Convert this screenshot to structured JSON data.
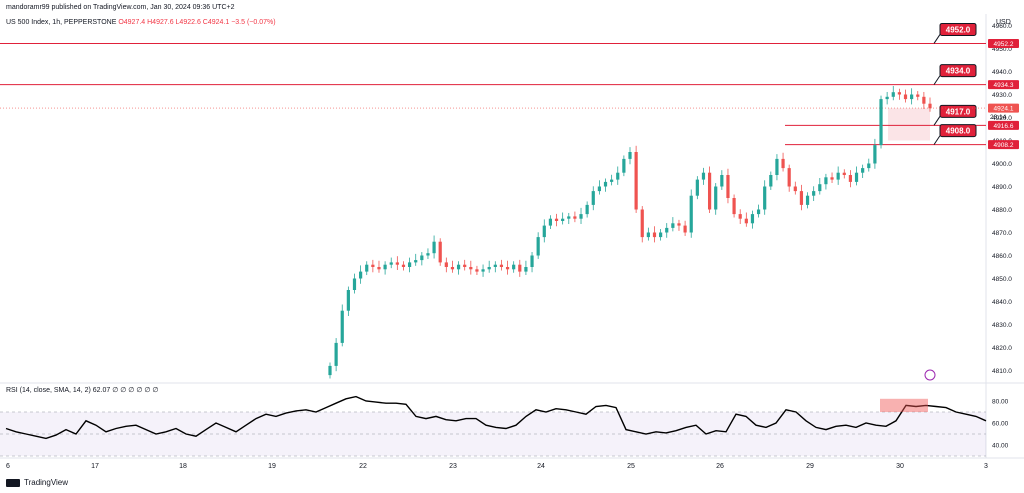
{
  "header": {
    "published": "mandoramr99 published on TradingView.com, Jan 30, 2024 09:36 UTC+2"
  },
  "symbol": {
    "name": "US 500 Index, 1h, PEPPERSTONE",
    "ohlc": "O4927.4  H4927.6  L4922.6  C4924.1  −3.5 (−0.07%)"
  },
  "currency": "USD",
  "rsi_title": "RSI (14, close, SMA, 14, 2)  62.07  ∅ ∅ ∅ ∅ ∅ ∅",
  "footer": {
    "brand": "TradingView"
  },
  "colors": {
    "up": "#26a69a",
    "down": "#ef5350",
    "level": "#e0213a",
    "rsi_line": "#000000",
    "rsi_band": "#7e57c2"
  },
  "chart_data": [
    {
      "type": "candlestick",
      "ylim": [
        4805,
        4965
      ],
      "y_ticks": [
        4810,
        4820,
        4830,
        4840,
        4850,
        4860,
        4870,
        4880,
        4890,
        4900,
        4910,
        4920,
        4930,
        4940,
        4950,
        4960
      ],
      "x_ticks": [
        "6",
        "17",
        "18",
        "19",
        "22",
        "23",
        "24",
        "25",
        "26",
        "29",
        "30",
        "3"
      ],
      "closes": [
        4812,
        4822,
        4836,
        4845,
        4850,
        4853,
        4856,
        4855,
        4854,
        4856,
        4857,
        4856,
        4855,
        4857,
        4858,
        4860,
        4861,
        4866,
        4857,
        4855,
        4854,
        4856,
        4855,
        4854,
        4853,
        4854,
        4855,
        4856,
        4855,
        4854,
        4856,
        4853,
        4855,
        4860,
        4868,
        4873,
        4876,
        4875,
        4876,
        4877,
        4876,
        4878,
        4882,
        4888,
        4890,
        4892,
        4893,
        4896,
        4902,
        4905,
        4880,
        4868,
        4870,
        4868,
        4870,
        4872,
        4874,
        4873,
        4870,
        4886,
        4893,
        4896,
        4880,
        4890,
        4895,
        4885,
        4878,
        4876,
        4874,
        4878,
        4880,
        4890,
        4895,
        4902,
        4898,
        4890,
        4888,
        4882,
        4886,
        4888,
        4891,
        4894,
        4893,
        4896,
        4895,
        4892,
        4896,
        4898,
        4900,
        4908,
        4928,
        4929,
        4931,
        4930,
        4928,
        4930,
        4929,
        4926,
        4924
      ],
      "horizontal_levels": [
        {
          "label": "4952.0",
          "axis_label": "4952.2",
          "value": 4952.2
        },
        {
          "label": "4934.0",
          "axis_label": "4934.3",
          "value": 4934.3
        },
        {
          "label": "4917.0",
          "axis_label": "4916.6",
          "value": 4916.6
        },
        {
          "label": "4908.0",
          "axis_label": "4908.2",
          "value": 4908.2
        }
      ],
      "price_label": "4924.1",
      "countdown": "23:14"
    },
    {
      "type": "line",
      "title": "RSI (14, close, SMA, 14, 2)",
      "ylim": [
        30,
        90
      ],
      "y_ticks": [
        "80.00",
        "60.00",
        "40.00"
      ],
      "band": [
        30,
        70
      ],
      "values": [
        55,
        52,
        50,
        48,
        46,
        49,
        54,
        50,
        62,
        58,
        52,
        55,
        57,
        58,
        54,
        50,
        52,
        55,
        50,
        48,
        54,
        60,
        56,
        52,
        58,
        64,
        68,
        66,
        69,
        71,
        72,
        70,
        74,
        78,
        82,
        84,
        80,
        79,
        78,
        78,
        77,
        66,
        64,
        66,
        63,
        62,
        64,
        64,
        58,
        56,
        55,
        58,
        66,
        72,
        70,
        73,
        72,
        70,
        68,
        75,
        76,
        74,
        54,
        52,
        50,
        52,
        51,
        53,
        56,
        58,
        50,
        53,
        52,
        68,
        66,
        58,
        56,
        60,
        72,
        70,
        62,
        56,
        54,
        57,
        58,
        56,
        60,
        58,
        57,
        62,
        76,
        75,
        76,
        75,
        74,
        70,
        68,
        66,
        62
      ]
    }
  ]
}
